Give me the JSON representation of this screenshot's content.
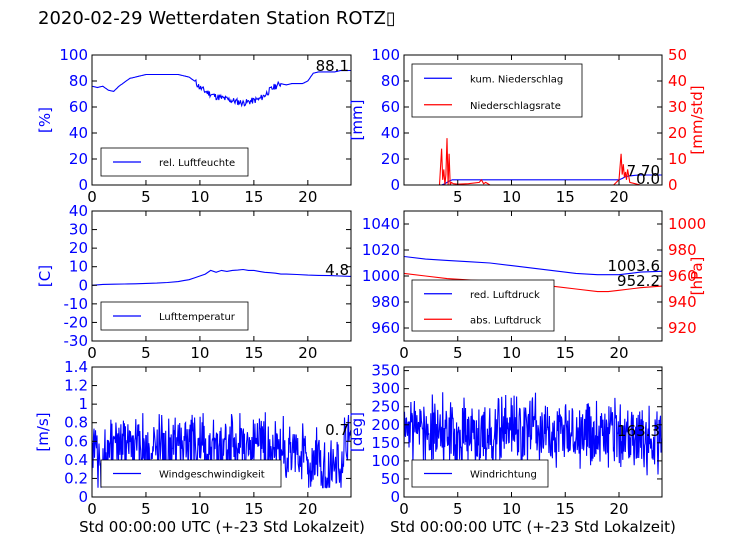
{
  "title": "2020-02-29 Wetterdaten Station ROTZ▯",
  "xlabel": "Std 00:00:00 UTC (+-23 Std Lokalzeit)",
  "colors": {
    "primary": "#0000ff",
    "secondary": "#ff0000",
    "axis": "#000000"
  },
  "chart_data": [
    {
      "id": "humidity",
      "type": "line",
      "ylabel": "[%]",
      "ylim": [
        0,
        100
      ],
      "yticks": [
        0,
        20,
        40,
        60,
        80,
        100
      ],
      "xlim": [
        0,
        24
      ],
      "xticks": [
        0,
        5,
        10,
        15,
        20
      ],
      "legend_placement": "lower-left",
      "last_value": "88.1",
      "series": [
        {
          "name": "rel. Luftfeuchte",
          "color": "#0000ff",
          "axis": "left",
          "x": [
            0,
            0.5,
            1,
            1.5,
            2,
            2.5,
            3,
            3.5,
            4,
            4.5,
            5,
            5.5,
            6,
            6.5,
            7,
            7.5,
            8,
            8.5,
            9,
            9.5,
            10,
            10.5,
            11,
            11.5,
            12,
            12.5,
            13,
            13.5,
            14,
            14.5,
            15,
            15.5,
            16,
            16.5,
            17,
            17.5,
            18,
            18.5,
            19,
            19.5,
            20,
            20.5,
            21,
            21.5,
            22,
            22.5,
            23,
            23.5,
            24
          ],
          "y": [
            76,
            75,
            76,
            73,
            72,
            76,
            79,
            82,
            83,
            84,
            85,
            85,
            85,
            85,
            85,
            85,
            85,
            84,
            83,
            80,
            75,
            72,
            70,
            68,
            67,
            66,
            65,
            64,
            63,
            64,
            65,
            66,
            69,
            73,
            76,
            78,
            77,
            78,
            78,
            78,
            80,
            86,
            87,
            87,
            87,
            87,
            88,
            88,
            88.1
          ]
        }
      ]
    },
    {
      "id": "precipitation",
      "type": "line",
      "ylabel": "[mm]",
      "ylim": [
        0,
        100
      ],
      "yticks": [
        0,
        20,
        40,
        60,
        80,
        100
      ],
      "y2label": "[mm/std]",
      "y2lim": [
        0,
        50
      ],
      "y2ticks": [
        0,
        10,
        20,
        30,
        40,
        50
      ],
      "xlim": [
        0,
        24
      ],
      "xticks": [
        5,
        10,
        15,
        20
      ],
      "legend_placement": "upper-left",
      "last_value": "7.70",
      "last_value2": "0.0",
      "series": [
        {
          "name": "kum. Niederschlag",
          "color": "#0000ff",
          "axis": "left",
          "x": [
            0,
            3.5,
            3.8,
            4,
            4.2,
            4.5,
            20,
            20.3,
            20.6,
            21,
            21.5,
            22,
            24
          ],
          "y": [
            0,
            0,
            1,
            2,
            3,
            4,
            4,
            5,
            6.5,
            7,
            7.5,
            7.7,
            7.7
          ]
        },
        {
          "name": "Niederschlagsrate",
          "color": "#ff0000",
          "axis": "right",
          "x": [
            0,
            3.3,
            3.5,
            3.6,
            3.7,
            3.8,
            3.9,
            4,
            4.1,
            4.2,
            4.3,
            4.4,
            4.6,
            5,
            6,
            7,
            7.2,
            7.4,
            7.6,
            8,
            19,
            19.5,
            20,
            20.2,
            20.3,
            20.4,
            20.5,
            20.6,
            20.7,
            20.8,
            21,
            21.5,
            22,
            24
          ],
          "y": [
            0,
            0,
            14,
            2,
            6,
            0,
            4,
            18,
            0,
            12,
            0,
            1,
            0.5,
            0.3,
            0.5,
            1,
            2,
            0.5,
            1,
            0,
            0,
            0,
            2,
            12,
            4,
            8,
            3,
            5,
            2,
            6,
            1,
            0.5,
            0,
            0
          ]
        }
      ]
    },
    {
      "id": "temperature",
      "type": "line",
      "ylabel": "[C]",
      "ylim": [
        -30,
        40
      ],
      "yticks": [
        -30,
        -20,
        -10,
        0,
        10,
        20,
        30,
        40
      ],
      "xlim": [
        0,
        24
      ],
      "xticks": [
        0,
        5,
        10,
        15,
        20
      ],
      "legend_placement": "lower-left",
      "last_value": "4.8",
      "series": [
        {
          "name": "Lufttemperatur",
          "color": "#0000ff",
          "axis": "left",
          "x": [
            0,
            1,
            2,
            3,
            4,
            5,
            6,
            7,
            8,
            8.5,
            9,
            9.5,
            10,
            10.5,
            11,
            11.5,
            12,
            12.5,
            13,
            13.5,
            14,
            14.5,
            15,
            15.5,
            16,
            16.5,
            17,
            17.5,
            18,
            19,
            20,
            21,
            22,
            23,
            24
          ],
          "y": [
            0,
            0.5,
            0.6,
            0.7,
            0.8,
            1,
            1.2,
            1.5,
            2,
            2.5,
            3,
            4,
            5,
            6,
            8,
            7,
            8,
            7.5,
            8,
            8.2,
            8.5,
            8,
            8,
            7.5,
            7,
            6.8,
            6.5,
            6,
            6,
            5.8,
            5.5,
            5.3,
            5.2,
            5,
            4.8
          ]
        }
      ]
    },
    {
      "id": "pressure",
      "type": "line",
      "ylabel": "",
      "ylim": [
        950,
        1050
      ],
      "yticks": [
        960,
        980,
        1000,
        1020,
        1040
      ],
      "y2label": "[hPa]",
      "y2lim": [
        910,
        1010
      ],
      "y2ticks": [
        920,
        940,
        960,
        980,
        1000
      ],
      "xlim": [
        0,
        24
      ],
      "xticks": [
        0,
        5,
        10,
        15,
        20
      ],
      "legend_placement": "lower-left",
      "last_value": "1003.6",
      "last_value2": "952.2",
      "series": [
        {
          "name": "red. Luftdruck",
          "color": "#0000ff",
          "axis": "left",
          "x": [
            0,
            2,
            4,
            6,
            8,
            10,
            12,
            14,
            16,
            18,
            20,
            21,
            22,
            24
          ],
          "y": [
            1015,
            1013,
            1012,
            1011,
            1010,
            1008,
            1006,
            1004,
            1002,
            1001,
            1001,
            1002,
            1003,
            1003.6
          ]
        },
        {
          "name": "abs. Luftdruck",
          "color": "#ff0000",
          "axis": "right",
          "x": [
            0,
            2,
            4,
            6,
            8,
            10,
            12,
            14,
            16,
            18,
            19,
            20,
            21,
            22,
            24
          ],
          "y": [
            962,
            960,
            958,
            957,
            956,
            954,
            953,
            952,
            950,
            948,
            948,
            949,
            950,
            951,
            952.2
          ]
        }
      ]
    },
    {
      "id": "windspeed",
      "type": "line",
      "ylabel": "[m/s]",
      "ylim": [
        0,
        1.4
      ],
      "yticks": [
        0.0,
        0.2,
        0.4,
        0.6,
        0.8,
        1.0,
        1.2,
        1.4
      ],
      "xlim": [
        0,
        24
      ],
      "xticks": [
        0,
        5,
        10,
        15,
        20
      ],
      "legend_placement": "lower-left",
      "last_value": "0.7",
      "noise_min": 0.1,
      "noise_max": 0.98,
      "series": [
        {
          "name": "Windgeschwindigkeit",
          "color": "#0000ff",
          "axis": "left",
          "x": [
            0,
            1,
            2,
            3,
            4,
            5,
            6,
            7,
            8,
            9,
            10,
            11,
            12,
            13,
            14,
            15,
            16,
            17,
            18,
            19,
            20,
            21,
            22,
            23,
            24
          ],
          "y": [
            0.5,
            0.45,
            0.5,
            0.6,
            0.55,
            0.5,
            0.6,
            0.5,
            0.55,
            0.6,
            0.5,
            0.55,
            0.5,
            0.6,
            0.55,
            0.6,
            0.5,
            0.55,
            0.5,
            0.45,
            0.4,
            0.35,
            0.3,
            0.4,
            0.7
          ]
        }
      ]
    },
    {
      "id": "winddirection",
      "type": "line",
      "ylabel": "[deg]",
      "ylim": [
        0,
        360
      ],
      "yticks": [
        0,
        50,
        100,
        150,
        200,
        250,
        300,
        350
      ],
      "xlim": [
        0,
        24
      ],
      "xticks": [
        0,
        5,
        10,
        15,
        20
      ],
      "legend_placement": "lower-left",
      "last_value": "163.3",
      "noise_min": 60,
      "noise_max": 300,
      "series": [
        {
          "name": "Windrichtung",
          "color": "#0000ff",
          "axis": "left",
          "x": [
            0,
            1,
            2,
            3,
            4,
            5,
            6,
            7,
            8,
            9,
            10,
            11,
            12,
            13,
            14,
            15,
            16,
            17,
            18,
            19,
            20,
            21,
            22,
            23,
            24
          ],
          "y": [
            180,
            190,
            185,
            180,
            175,
            170,
            180,
            185,
            180,
            175,
            180,
            185,
            190,
            180,
            175,
            180,
            185,
            190,
            180,
            175,
            170,
            160,
            165,
            160,
            163.3
          ]
        }
      ]
    }
  ]
}
